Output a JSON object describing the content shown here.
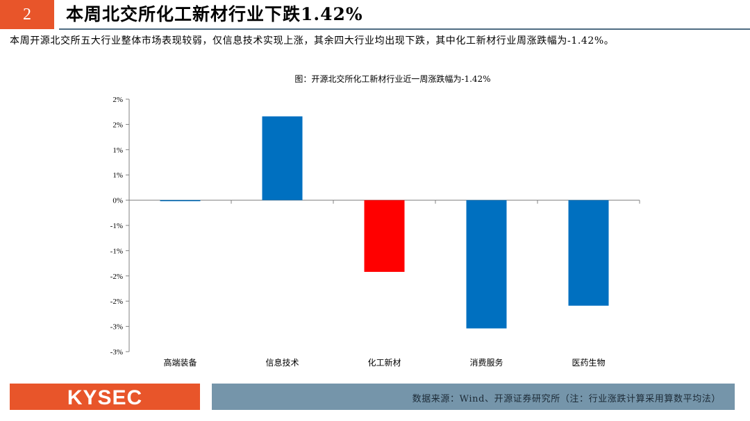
{
  "header": {
    "slide_number": "2",
    "title": "本周北交所化工新材行业下跌1.42%"
  },
  "summary": "本周开源北交所五大行业整体市场表现较弱，仅信息技术实现上涨，其余四大行业均出现下跌，其中化工新材行业周涨跌幅为-1.42%。",
  "chart_data": {
    "type": "bar",
    "title": "图：开源北交所化工新材行业近一周涨跌幅为-1.42%",
    "categories": [
      "高端装备",
      "信息技术",
      "化工新材",
      "消费服务",
      "医药生物"
    ],
    "values": [
      -0.02,
      1.66,
      -1.42,
      -2.54,
      -2.09
    ],
    "bar_colors": [
      "#0070c0",
      "#0070c0",
      "#ff0000",
      "#0070c0",
      "#0070c0"
    ],
    "ylim": [
      -3.0,
      2.0
    ],
    "yticks": [
      2.0,
      1.5,
      1.0,
      0.5,
      0.0,
      -0.5,
      -1.0,
      -1.5,
      -2.0,
      -2.5,
      -3.0
    ],
    "ytick_labels": [
      "2%",
      "2%",
      "1%",
      "1%",
      "0%",
      "-1%",
      "-1%",
      "-2%",
      "-2%",
      "-3%",
      "-3%"
    ],
    "xlabel": "",
    "ylabel": "",
    "grid": false
  },
  "footer": {
    "logo_text": "KYSEC",
    "source": "数据来源：Wind、开源证券研究所（注：行业涨跌计算采用算数平均法）"
  },
  "colors": {
    "accent": "#e8552a",
    "footer_band": "#7595aa",
    "rule": "#4e6b82"
  }
}
